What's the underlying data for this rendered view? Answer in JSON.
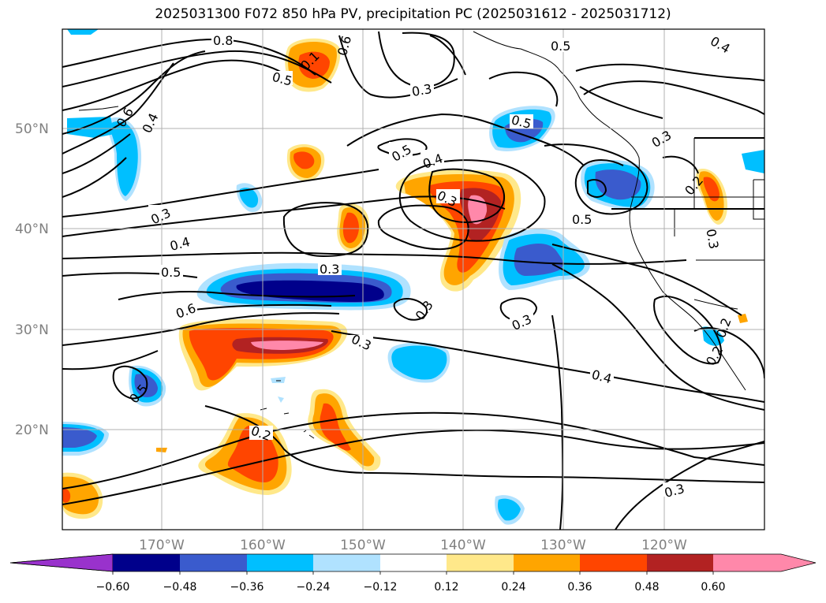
{
  "title": "2025031300 F072 850 hPa PV, precipitation PC (2025031612 - 2025031712)",
  "lat_labels": [
    "50°N",
    "40°N",
    "30°N",
    "20°N"
  ],
  "lon_labels": [
    "170°W",
    "160°W",
    "150°W",
    "140°W",
    "130°W",
    "120°W"
  ],
  "contour_labels": [
    "0.8",
    "0.6",
    "0.1",
    "0.5",
    "0.5",
    "0.3",
    "0.4",
    "0.6",
    "0.4",
    "0.3",
    "0.5",
    "0.4",
    "0.3",
    "0.5",
    "0.3",
    "0.4",
    "0.5",
    "0.6",
    "0.3",
    "0.3",
    "0.3",
    "0.3",
    "0.5",
    "0.2",
    "0.3",
    "0.4",
    "0.2",
    "0.2",
    "0.2",
    "0.3",
    "0.5"
  ],
  "colorbar": {
    "ticks": [
      "−0.60",
      "−0.48",
      "−0.36",
      "−0.24",
      "−0.12",
      "0.12",
      "0.24",
      "0.36",
      "0.48",
      "0.60"
    ],
    "colors": [
      "#9932cc",
      "#00008b",
      "#3a5bcd",
      "#00bfff",
      "#b0e2ff",
      "#ffffff",
      "#ffe88a",
      "#ffa500",
      "#ff4500",
      "#b22222",
      "#ff88aa",
      "#ff88aa"
    ]
  },
  "map": {
    "lat_range": [
      10,
      60
    ],
    "lon_range": [
      -180,
      -110
    ],
    "shading_colors": {
      "neg_strong": "#00008b",
      "neg_mid": "#3a5bcd",
      "neg_light": "#00bfff",
      "neg_faint": "#b0e2ff",
      "pos_faint": "#ffe88a",
      "pos_light": "#ffa500",
      "pos_mid": "#ff4500",
      "pos_strong": "#b22222",
      "pos_max": "#ff88aa"
    }
  }
}
